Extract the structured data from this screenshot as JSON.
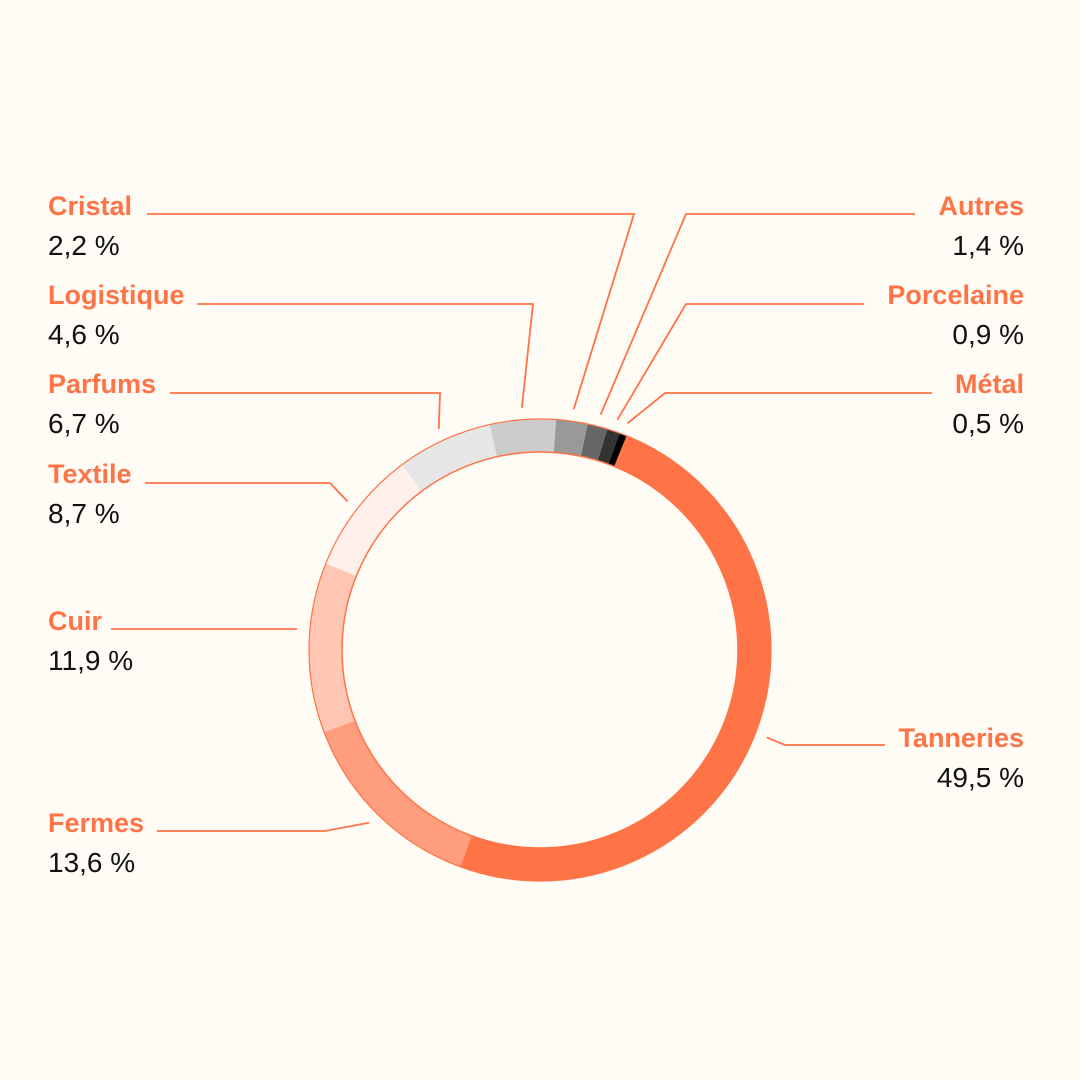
{
  "chart_data": {
    "type": "pie",
    "variant": "donut",
    "title": "",
    "categories": [
      "Tanneries",
      "Fermes",
      "Cuir",
      "Textile",
      "Parfums",
      "Logistique",
      "Cristal",
      "Autres",
      "Porcelaine",
      "Métal"
    ],
    "values": [
      49.5,
      13.6,
      11.9,
      8.7,
      6.7,
      4.6,
      2.2,
      1.4,
      0.9,
      0.5
    ],
    "value_labels": [
      "49,5 %",
      "13,6 %",
      "11,9 %",
      "8,7 %",
      "6,7 %",
      "4,6 %",
      "2,2 %",
      "1,4 %",
      "0,9 %",
      "0,5 %"
    ],
    "colors": [
      "#ff7447",
      "#ff9e7e",
      "#ffc6b4",
      "#fff0eb",
      "#e6e6e6",
      "#cccccc",
      "#999999",
      "#666666",
      "#333333",
      "#000000"
    ],
    "label_color": "#ff7447",
    "legend": "none"
  }
}
